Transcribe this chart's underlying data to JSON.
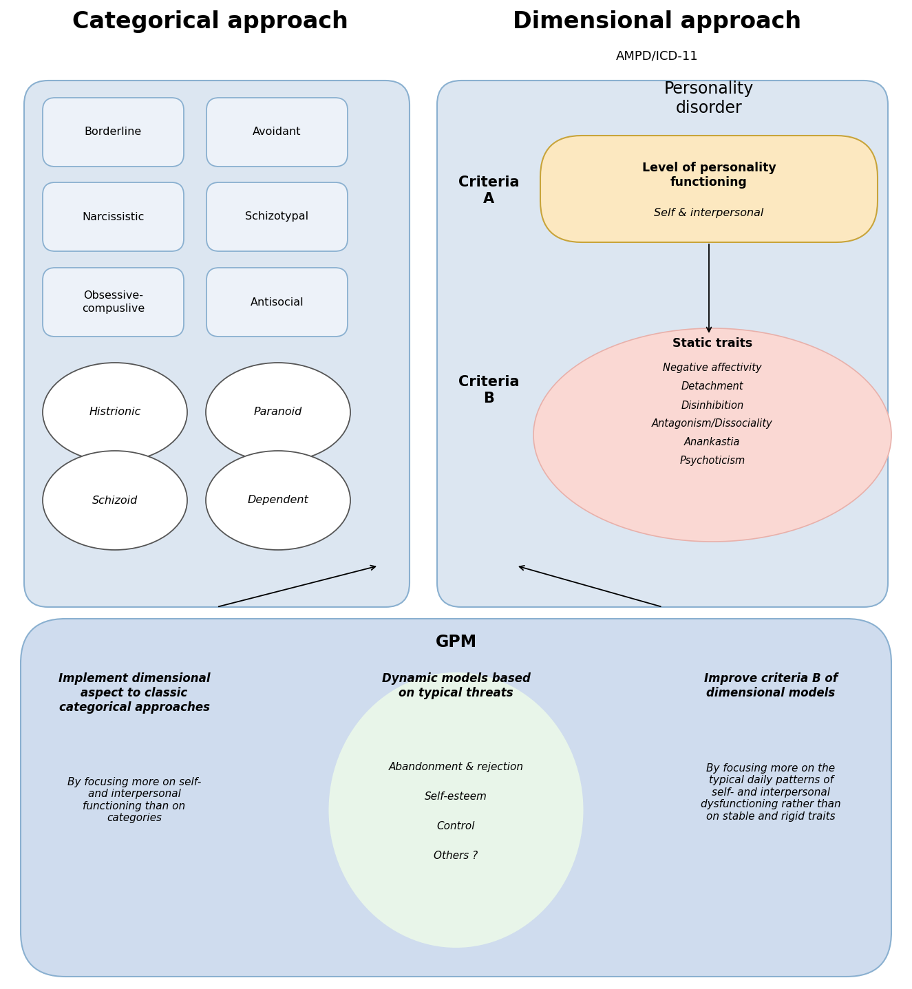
{
  "title_left": "Categorical approach",
  "title_right": "Dimensional approach",
  "subtitle_right": "AMPD/ICD-11",
  "bg_color": "#ffffff",
  "left_box_color": "#dce6f1",
  "right_box_color": "#dce6f1",
  "bottom_box_color": "#cfdcee",
  "rect_items": [
    "Borderline",
    "Avoidant",
    "Narcissistic",
    "Schizotypal",
    "Obsessive-\ncompuslive",
    "Antisocial"
  ],
  "ellipse_items": [
    "Histrionic",
    "Paranoid",
    "Schizoid",
    "Dependent"
  ],
  "criteria_a_label": "Criteria\nA",
  "criteria_b_label": "Criteria\nB",
  "personality_disorder_text": "Personality\ndisorder",
  "criteria_a_box_color": "#fce8c0",
  "criteria_a_box_border": "#c8a43a",
  "criteria_a_title": "Level of personality\nfunctioning",
  "criteria_a_subtitle": "Self & interpersonal",
  "criteria_b_box_color": "#fad8d3",
  "criteria_b_border": "#e8b0aa",
  "criteria_b_title": "Static traits",
  "criteria_b_items": [
    "Negative affectivity",
    "Detachment",
    "Disinhibition",
    "Antagonism/Dissociality",
    "Anankastia",
    "Psychoticism"
  ],
  "gpm_title": "GPM",
  "gpm_left_title": "Implement dimensional\naspect to classic\ncategorical approaches",
  "gpm_left_body": "By focusing more on self-\nand interpersonal\nfunctioning than on\ncategories",
  "gpm_center_title": "Dynamic models based\non typical threats",
  "gpm_center_items": [
    "Abandonment & rejection",
    "Self-esteem",
    "Control",
    "Others ?"
  ],
  "gpm_center_color": "#e8f5e9",
  "gpm_right_title": "Improve criteria B of\ndimensional models",
  "gpm_right_body": "By focusing more on the\ntypical daily patterns of\nself- and interpersonal\ndysfunctioning rather than\non stable and rigid traits",
  "box_border_color": "#8ab0d0",
  "rect_border_color": "#8ab0d0",
  "rect_fill_color": "#edf2f9"
}
